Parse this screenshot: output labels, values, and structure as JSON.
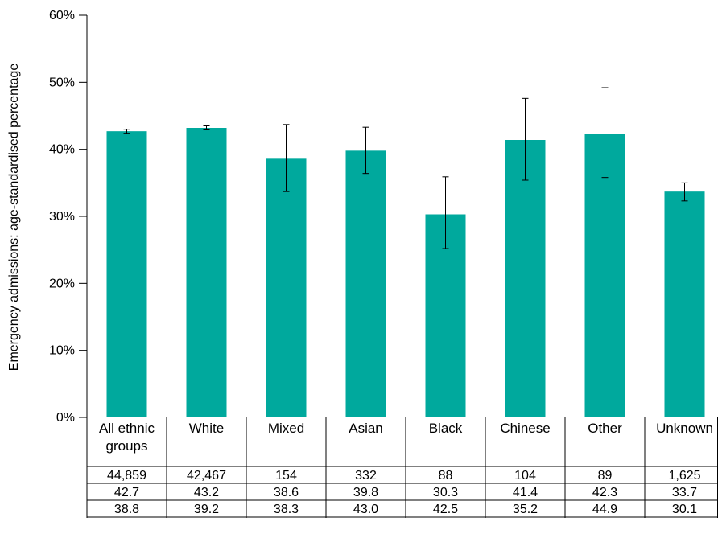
{
  "chart_data": {
    "type": "bar",
    "title": "",
    "ylabel": "Emergency admissions: age-standardised percentage",
    "xlabel": "",
    "ylim": [
      0,
      60
    ],
    "yticks": [
      "0%",
      "10%",
      "20%",
      "30%",
      "40%",
      "50%",
      "60%"
    ],
    "categories": [
      [
        "All ethnic",
        "groups"
      ],
      [
        "White"
      ],
      [
        "Mixed"
      ],
      [
        "Asian"
      ],
      [
        "Black"
      ],
      [
        "Chinese"
      ],
      [
        "Other"
      ],
      [
        "Unknown"
      ]
    ],
    "values": [
      42.7,
      43.2,
      38.6,
      39.8,
      30.3,
      41.4,
      42.3,
      33.7
    ],
    "ci_lower": [
      42.4,
      42.9,
      33.7,
      36.4,
      25.2,
      35.4,
      35.8,
      32.3
    ],
    "ci_upper": [
      43.0,
      43.5,
      43.7,
      43.3,
      35.9,
      47.6,
      49.2,
      35.0
    ],
    "reference_line": 38.7,
    "bar_color": "#00a99d",
    "table_rows": [
      [
        "44,859",
        "42,467",
        "154",
        "332",
        "88",
        "104",
        "89",
        "1,625"
      ],
      [
        "42.7",
        "43.2",
        "38.6",
        "39.8",
        "30.3",
        "41.4",
        "42.3",
        "33.7"
      ],
      [
        "38.8",
        "39.2",
        "38.3",
        "43.0",
        "42.5",
        "35.2",
        "44.9",
        "30.1"
      ]
    ]
  }
}
